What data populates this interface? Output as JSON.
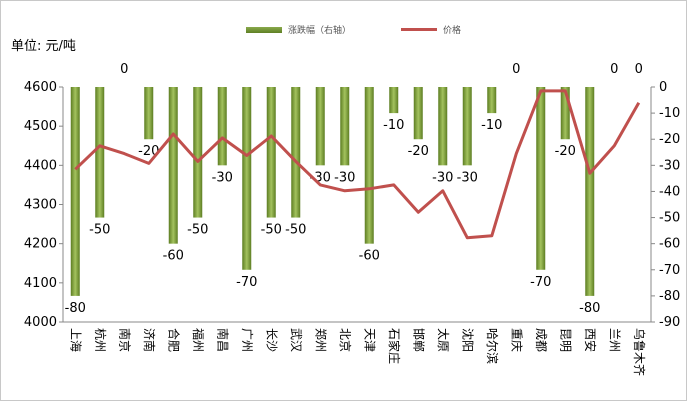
{
  "unit_label": "单位: 元/吨",
  "chart_data": {
    "type": "bar+line",
    "categories": [
      "上海",
      "杭州",
      "南京",
      "济南",
      "合肥",
      "福州",
      "南昌",
      "广州",
      "长沙",
      "武汉",
      "郑州",
      "北京",
      "天津",
      "石家庄",
      "邯郸",
      "太原",
      "沈阳",
      "哈尔滨",
      "重庆",
      "成都",
      "昆明",
      "西安",
      "兰州",
      "乌鲁木齐"
    ],
    "series": [
      {
        "name": "涨跌幅（右轴）",
        "type": "bar",
        "axis": "right",
        "color": "#7a9a3a",
        "values": [
          -80,
          -50,
          0,
          -20,
          -60,
          -50,
          -30,
          -70,
          -50,
          -50,
          -30,
          -30,
          -60,
          -10,
          -20,
          -30,
          -30,
          -10,
          0,
          -70,
          -20,
          -80,
          0,
          0
        ]
      },
      {
        "name": "价格",
        "type": "line",
        "axis": "left",
        "color": "#c0504d",
        "values": [
          4390,
          4450,
          4430,
          4405,
          4480,
          4410,
          4470,
          4425,
          4475,
          4410,
          4350,
          4335,
          4340,
          4350,
          4280,
          4335,
          4215,
          4220,
          4430,
          4590,
          4590,
          4380,
          4450,
          4560
        ]
      }
    ],
    "y_left": {
      "min": 4000,
      "max": 4600,
      "ticks": [
        4000,
        4100,
        4200,
        4300,
        4400,
        4500,
        4600
      ]
    },
    "y_right": {
      "min": -90,
      "max": 0,
      "ticks": [
        0,
        -10,
        -20,
        -30,
        -40,
        -50,
        -60,
        -70,
        -80,
        -90
      ]
    },
    "legend_position": "top"
  }
}
